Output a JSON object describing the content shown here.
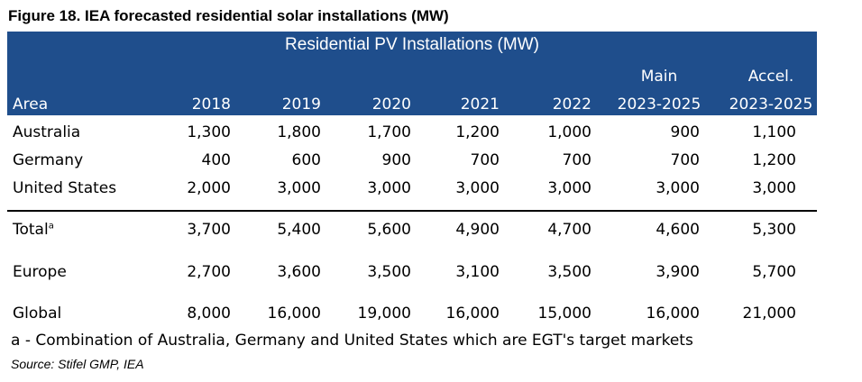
{
  "figure_title": "Figure 18. IEA forecasted residential solar installations (MW)",
  "banner": "Residential PV Installations  (MW)",
  "columns": {
    "area": "Area",
    "y2018": "2018",
    "y2019": "2019",
    "y2020": "2020",
    "y2021": "2021",
    "y2022": "2022",
    "main_top": "Main",
    "main_bottom": "2023-2025",
    "accel_top": "Accel.",
    "accel_bottom": "2023-2025"
  },
  "rows": [
    {
      "area": "Australia",
      "values": [
        "1,300",
        "1,800",
        "1,700",
        "1,200",
        "1,000",
        "900",
        "1,100"
      ]
    },
    {
      "area": "Germany",
      "values": [
        "400",
        "600",
        "900",
        "700",
        "700",
        "700",
        "1,200"
      ]
    },
    {
      "area": "United States",
      "values": [
        "2,000",
        "3,000",
        "3,000",
        "3,000",
        "3,000",
        "3,000",
        "3,000"
      ]
    },
    {
      "area": "Total",
      "sup": "a",
      "values": [
        "3,700",
        "5,400",
        "5,600",
        "4,900",
        "4,700",
        "4,600",
        "5,300"
      ]
    },
    {
      "area": "Europe",
      "values": [
        "2,700",
        "3,600",
        "3,500",
        "3,100",
        "3,500",
        "3,900",
        "5,700"
      ]
    },
    {
      "area": "Global",
      "values": [
        "8,000",
        "16,000",
        "19,000",
        "16,000",
        "15,000",
        "16,000",
        "21,000"
      ]
    }
  ],
  "footnote": "a - Combination of Australia, Germany and United States which are EGT's target markets",
  "source": "Source: Stifel GMP, IEA",
  "colors": {
    "header_bg": "#1f4e8c",
    "header_text": "#ffffff"
  }
}
